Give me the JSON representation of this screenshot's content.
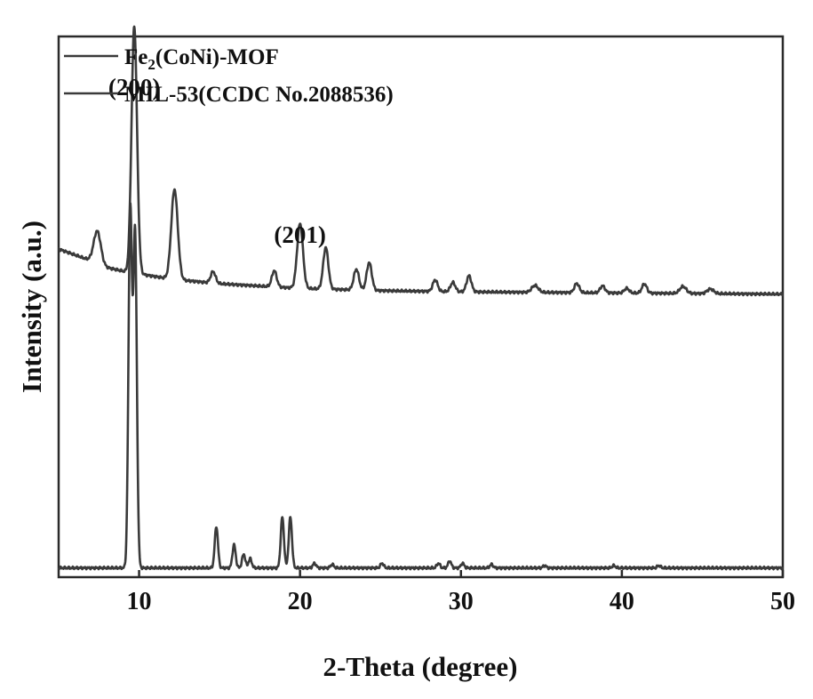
{
  "chart_data": {
    "type": "line",
    "xlabel": "2-Theta (degree)",
    "ylabel": "Intensity (a.u.)",
    "xlim": [
      5,
      50
    ],
    "xticks": [
      10,
      20,
      30,
      40,
      50
    ],
    "yticks_shown": false,
    "grid": false,
    "legend_position": "top-left",
    "line_color": "#3a3a3a",
    "series": [
      {
        "name": "Fe2(CoNi)-MOF",
        "name_parts": {
          "base": "Fe",
          "sub": "2",
          "rest": "(CoNi)-MOF"
        },
        "baseline": [
          [
            5,
            38
          ],
          [
            7,
            33
          ],
          [
            8,
            30
          ],
          [
            9.3,
            28
          ],
          [
            12,
            25
          ],
          [
            15,
            23
          ],
          [
            20,
            21
          ],
          [
            25,
            20
          ],
          [
            30,
            19.5
          ],
          [
            40,
            19
          ],
          [
            50,
            18.5
          ]
        ],
        "peaks": [
          {
            "x": 7.4,
            "h": 14,
            "w": 0.22
          },
          {
            "x": 9.7,
            "h": 107,
            "w": 0.17
          },
          {
            "x": 12.2,
            "h": 39,
            "w": 0.2
          },
          {
            "x": 14.6,
            "h": 5,
            "w": 0.15
          },
          {
            "x": 18.4,
            "h": 7,
            "w": 0.15
          },
          {
            "x": 20.0,
            "h": 28,
            "w": 0.18
          },
          {
            "x": 21.6,
            "h": 18,
            "w": 0.16
          },
          {
            "x": 23.5,
            "h": 9,
            "w": 0.16
          },
          {
            "x": 24.3,
            "h": 12,
            "w": 0.16
          },
          {
            "x": 28.4,
            "h": 5,
            "w": 0.15
          },
          {
            "x": 29.5,
            "h": 4,
            "w": 0.15
          },
          {
            "x": 30.5,
            "h": 7,
            "w": 0.15
          },
          {
            "x": 34.6,
            "h": 3,
            "w": 0.2
          },
          {
            "x": 37.2,
            "h": 4,
            "w": 0.15
          },
          {
            "x": 38.8,
            "h": 3,
            "w": 0.15
          },
          {
            "x": 40.3,
            "h": 2,
            "w": 0.15
          },
          {
            "x": 41.4,
            "h": 4,
            "w": 0.15
          },
          {
            "x": 43.8,
            "h": 3,
            "w": 0.2
          },
          {
            "x": 45.5,
            "h": 2,
            "w": 0.2
          }
        ]
      },
      {
        "name": "MIL-53(CCDC No.2088536)",
        "baseline": [
          [
            5,
            -100
          ],
          [
            50,
            -100
          ]
        ],
        "peaks": [
          {
            "x": 9.45,
            "h": 154,
            "w": 0.11
          },
          {
            "x": 9.75,
            "h": 144,
            "w": 0.11
          },
          {
            "x": 14.8,
            "h": 18,
            "w": 0.1
          },
          {
            "x": 15.9,
            "h": 10,
            "w": 0.1
          },
          {
            "x": 16.5,
            "h": 6,
            "w": 0.1
          },
          {
            "x": 16.9,
            "h": 4,
            "w": 0.1
          },
          {
            "x": 18.9,
            "h": 22,
            "w": 0.1
          },
          {
            "x": 19.4,
            "h": 22,
            "w": 0.1
          },
          {
            "x": 20.9,
            "h": 2,
            "w": 0.1
          },
          {
            "x": 22.0,
            "h": 1.5,
            "w": 0.1
          },
          {
            "x": 25.1,
            "h": 2,
            "w": 0.1
          },
          {
            "x": 28.6,
            "h": 2,
            "w": 0.1
          },
          {
            "x": 29.3,
            "h": 3,
            "w": 0.1
          },
          {
            "x": 30.1,
            "h": 2,
            "w": 0.1
          },
          {
            "x": 31.9,
            "h": 1.5,
            "w": 0.1
          },
          {
            "x": 35.2,
            "h": 1,
            "w": 0.1
          },
          {
            "x": 39.5,
            "h": 1,
            "w": 0.1
          },
          {
            "x": 42.3,
            "h": 1,
            "w": 0.1
          }
        ]
      }
    ],
    "ylim": [
      -104,
      130
    ],
    "annotations": [
      {
        "text": "(200)",
        "x": 9.7,
        "y": 100
      },
      {
        "text": "(201)",
        "x": 20.0,
        "y": 36
      }
    ]
  }
}
